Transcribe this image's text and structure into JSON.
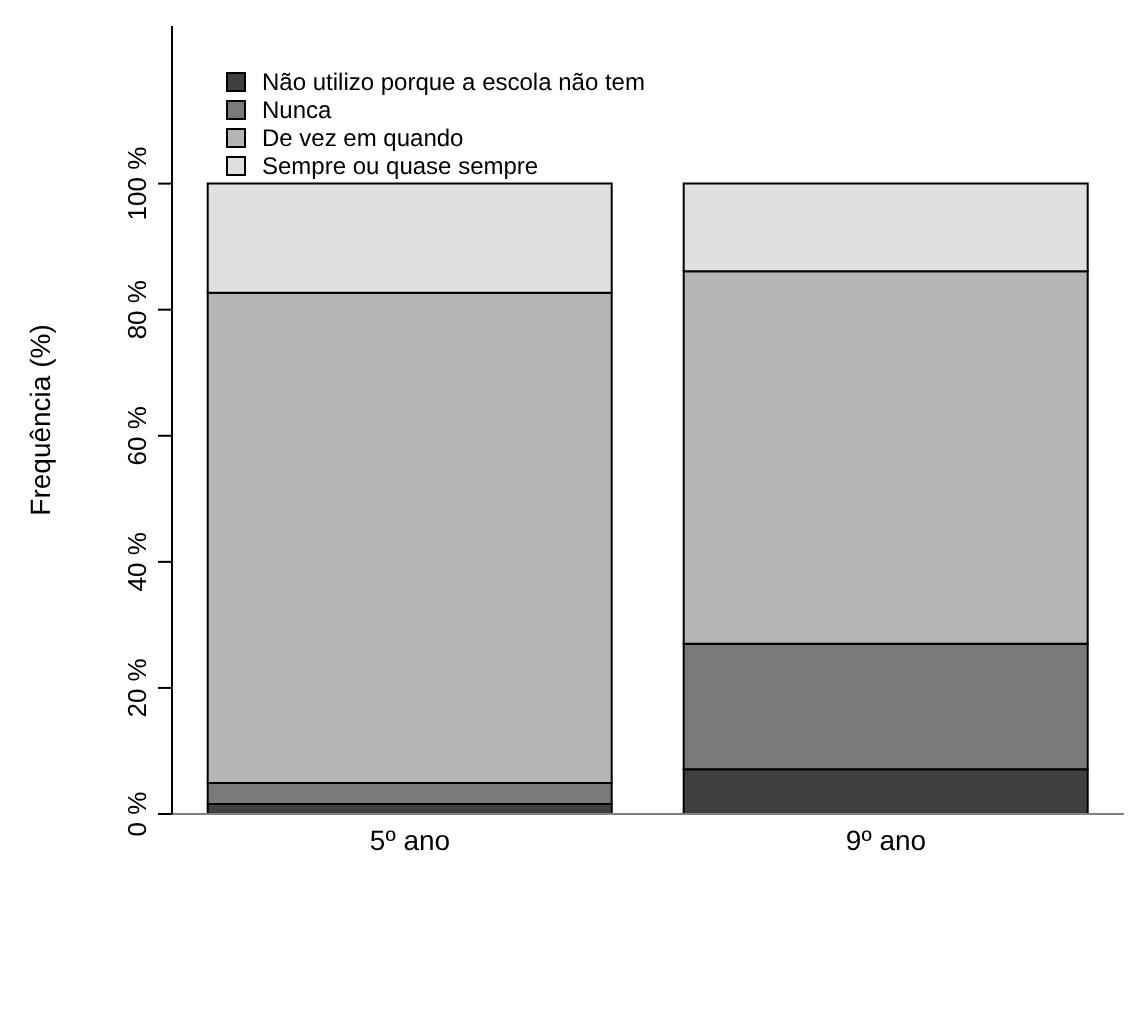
{
  "chart_data": {
    "type": "bar",
    "stacked": true,
    "ylabel": "Frequência (%)",
    "categories": [
      "5º ano",
      "9º ano"
    ],
    "series": [
      {
        "name": "Não utilizo porque a escola não tem",
        "color": "#404040",
        "values": [
          1.6,
          7.1
        ]
      },
      {
        "name": "Nunca",
        "color": "#7a7a7a",
        "values": [
          3.3,
          19.9
        ]
      },
      {
        "name": "De vez em quando",
        "color": "#b5b5b5",
        "values": [
          77.8,
          59.1
        ]
      },
      {
        "name": "Sempre ou quase sempre",
        "color": "#e0e0e0",
        "values": [
          17.3,
          13.9
        ]
      }
    ],
    "ylim": [
      0,
      125
    ],
    "yticks": [
      {
        "value": 0,
        "label": "0 %"
      },
      {
        "value": 20,
        "label": "20 %"
      },
      {
        "value": 40,
        "label": "40 %"
      },
      {
        "value": 60,
        "label": "60 %"
      },
      {
        "value": 80,
        "label": "80 %"
      },
      {
        "value": 100,
        "label": "100 %"
      }
    ],
    "grid": false,
    "legend": "top left"
  }
}
